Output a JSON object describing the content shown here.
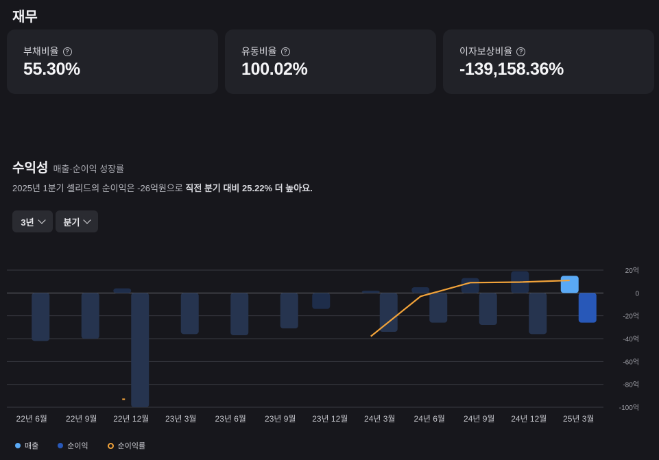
{
  "finance": {
    "title": "재무",
    "cards": [
      {
        "label": "부채비율",
        "value": "55.30%"
      },
      {
        "label": "유동비율",
        "value": "100.02%"
      },
      {
        "label": "이자보상비율",
        "value": "-139,158.36%"
      }
    ],
    "help_glyph": "?"
  },
  "profitability": {
    "title": "수익성",
    "subtitle": "매출·순이익 성장률",
    "summary_prefix": "2025년 1분기 셀리드의 순이익은 -26억원으로 ",
    "summary_bold": "직전 분기 대비 25.22% 더 높아요.",
    "period_select": "3년",
    "interval_select": "분기"
  },
  "colors": {
    "revenue": "#1e2d4a",
    "revenue_highlight": "#5aa9f5",
    "net_income": "#26344f",
    "net_income_highlight": "#2858b8",
    "growth_line": "#f2a33a"
  },
  "chart_data": {
    "type": "bar",
    "categories": [
      "22년 6월",
      "22년 9월",
      "22년 12월",
      "23년 3월",
      "23년 6월",
      "23년 9월",
      "23년 12월",
      "24년 3월",
      "24년 6월",
      "24년 9월",
      "24년 12월",
      "25년 3월"
    ],
    "series": [
      {
        "name": "매출",
        "values": [
          0,
          0,
          4,
          0,
          0,
          0,
          -14,
          2,
          5,
          13,
          19,
          15
        ]
      },
      {
        "name": "순이익",
        "values": [
          -42,
          -40,
          -100,
          -36,
          -37,
          -31,
          0,
          -34,
          -26,
          -28,
          -36,
          -26
        ]
      },
      {
        "name": "순이익률",
        "type": "line",
        "values": [
          null,
          null,
          null,
          null,
          null,
          null,
          null,
          -38,
          -3,
          9,
          9.5,
          11
        ]
      }
    ],
    "y_ticks": [
      "20억",
      "0",
      "-20억",
      "-40억",
      "-60억",
      "-80억",
      "-100억"
    ],
    "ylim": [
      -100,
      20
    ],
    "grid": true,
    "legend_position": "bottom-left"
  }
}
